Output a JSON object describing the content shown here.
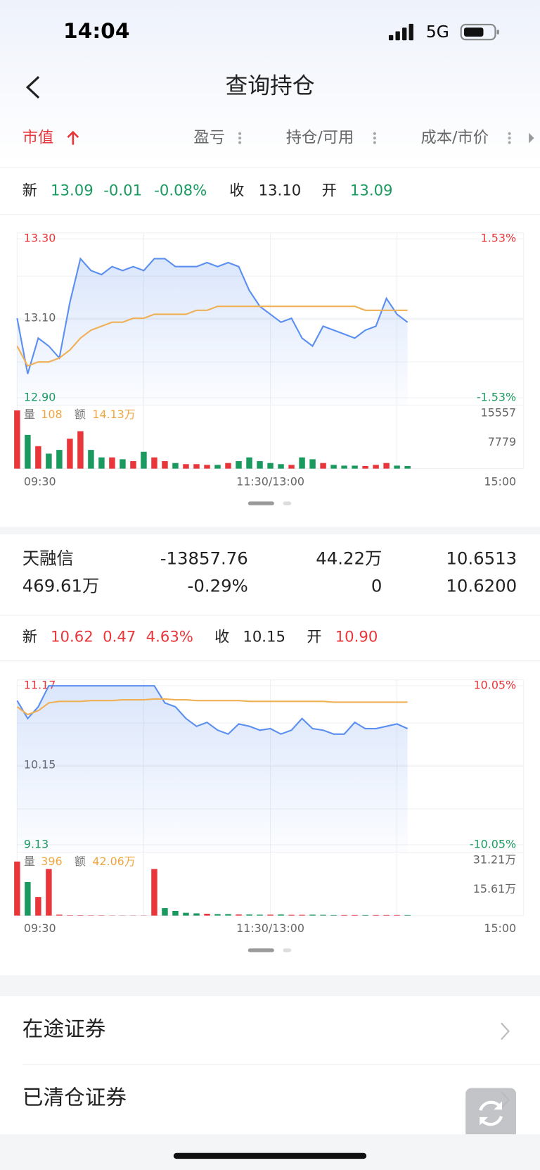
{
  "status_bar": {
    "time": "14:04",
    "network": "5G"
  },
  "header": {
    "title": "查询持仓"
  },
  "tabs": [
    "市值",
    "盈亏",
    "持仓/可用",
    "成本/市价"
  ],
  "positions": [
    {
      "quote": {
        "new_label": "新",
        "new": "13.09",
        "change": "-0.01",
        "change_pct": "-0.08%",
        "close_label": "收",
        "close": "13.10",
        "open_label": "开",
        "open": "13.09"
      },
      "chart": {
        "type": "line",
        "xticks": [
          "09:30",
          "11:30/13:00",
          "15:00"
        ],
        "ylim": [
          12.9,
          13.3
        ],
        "yticks": [
          {
            "value": 12.9,
            "label": "12.90"
          },
          {
            "value": 13.1,
            "label": "13.10"
          },
          {
            "value": 13.3,
            "label": "13.30"
          }
        ],
        "y2lim": [
          -1.53,
          1.53
        ],
        "y2ticks": [
          {
            "value": -1.53,
            "label": "-1.53%"
          },
          {
            "value": 1.53,
            "label": "1.53%"
          }
        ],
        "series": [
          {
            "color": "#5b8ff0",
            "values": [
              13.1,
              12.96,
              13.05,
              13.03,
              13.0,
              13.14,
              13.25,
              13.22,
              13.21,
              13.23,
              13.22,
              13.23,
              13.22,
              13.25,
              13.25,
              13.23,
              13.23,
              13.23,
              13.24,
              13.23,
              13.24,
              13.23,
              13.17,
              13.13,
              13.11,
              13.09,
              13.1,
              13.05,
              13.03,
              13.08,
              13.07,
              13.06,
              13.05,
              13.07,
              13.08,
              13.15,
              13.11,
              13.09
            ]
          },
          {
            "color": "#f0b055",
            "values": [
              13.03,
              12.98,
              12.99,
              12.99,
              13.0,
              13.02,
              13.05,
              13.07,
              13.08,
              13.09,
              13.09,
              13.1,
              13.1,
              13.11,
              13.11,
              13.11,
              13.11,
              13.12,
              13.12,
              13.13,
              13.13,
              13.13,
              13.13,
              13.13,
              13.13,
              13.13,
              13.13,
              13.13,
              13.13,
              13.13,
              13.13,
              13.13,
              13.13,
              13.12,
              13.12,
              13.12,
              13.12,
              13.12
            ]
          }
        ],
        "volume": {
          "values": [
            15557,
            9000,
            6000,
            4000,
            5000,
            8000,
            10000,
            5000,
            3000,
            3000,
            2500,
            2000,
            4500,
            3000,
            2000,
            1500,
            1200,
            1200,
            1000,
            1000,
            1500,
            2000,
            3000,
            2000,
            1500,
            1200,
            1000,
            3000,
            2500,
            1500,
            1000,
            800,
            800,
            700,
            1000,
            1500,
            800,
            700
          ],
          "ylim": [
            0,
            15557
          ],
          "yticks": [
            7779,
            15557
          ],
          "up_color": "#e8363a",
          "down_color": "#1a9a5f"
        },
        "volume_label": "量",
        "volume_value": "108",
        "amount_label": "额",
        "amount_value": "14.13万"
      }
    },
    {
      "summary": {
        "name": "天融信",
        "pnl": "-13857.76",
        "holding": "44.22万",
        "cost": "10.6513",
        "market_value": "469.61万",
        "pnl_pct": "-0.29%",
        "available": "0",
        "price": "10.6200"
      },
      "quote": {
        "new_label": "新",
        "new": "10.62",
        "change": "0.47",
        "change_pct": "4.63%",
        "close_label": "收",
        "close": "10.15",
        "open_label": "开",
        "open": "10.90"
      },
      "chart": {
        "type": "line",
        "xticks": [
          "09:30",
          "11:30/13:00",
          "15:00"
        ],
        "ylim": [
          9.13,
          11.17
        ],
        "yticks": [
          {
            "value": 9.13,
            "label": "9.13"
          },
          {
            "value": 10.15,
            "label": "10.15"
          },
          {
            "value": 11.17,
            "label": "11.17"
          }
        ],
        "y2lim": [
          -10.05,
          10.05
        ],
        "y2ticks": [
          {
            "value": -10.05,
            "label": "-10.05%"
          },
          {
            "value": 10.05,
            "label": "10.05%"
          }
        ],
        "series": [
          {
            "color": "#5b8ff0",
            "values": [
              10.98,
              10.75,
              10.9,
              11.17,
              11.17,
              11.17,
              11.17,
              11.17,
              11.17,
              11.17,
              11.17,
              11.17,
              11.17,
              11.17,
              10.95,
              10.9,
              10.75,
              10.65,
              10.7,
              10.6,
              10.55,
              10.68,
              10.65,
              10.6,
              10.62,
              10.55,
              10.6,
              10.75,
              10.62,
              10.6,
              10.55,
              10.55,
              10.7,
              10.62,
              10.62,
              10.65,
              10.68,
              10.62
            ]
          },
          {
            "color": "#f0b055",
            "values": [
              10.9,
              10.8,
              10.85,
              10.95,
              10.97,
              10.97,
              10.97,
              10.98,
              10.98,
              10.98,
              10.99,
              10.99,
              10.99,
              11.0,
              11.0,
              10.99,
              10.99,
              10.98,
              10.98,
              10.98,
              10.98,
              10.98,
              10.97,
              10.97,
              10.97,
              10.97,
              10.97,
              10.97,
              10.97,
              10.97,
              10.96,
              10.96,
              10.96,
              10.96,
              10.96,
              10.96,
              10.96,
              10.96
            ]
          }
        ],
        "volume": {
          "values": [
            290000,
            180000,
            100000,
            250000,
            5000,
            2000,
            2000,
            1500,
            1500,
            1000,
            1000,
            1000,
            1000,
            250000,
            40000,
            25000,
            15000,
            12000,
            10000,
            8000,
            8000,
            6000,
            6000,
            5000,
            5000,
            6000,
            4000,
            4000,
            5000,
            4000,
            3000,
            3000,
            3000,
            3000,
            3000,
            3000,
            3000,
            3000
          ],
          "ylim": [
            0,
            312100
          ],
          "yticks": [
            {
              "value": 156100,
              "label": "15.61万"
            },
            {
              "value": 312100,
              "label": "31.21万"
            }
          ],
          "up_color": "#e8363a",
          "down_color": "#1a9a5f"
        },
        "volume_label": "量",
        "volume_value": "396",
        "amount_label": "额",
        "amount_value": "42.06万"
      }
    }
  ],
  "links": [
    "在途证券",
    "已清仓证券"
  ]
}
